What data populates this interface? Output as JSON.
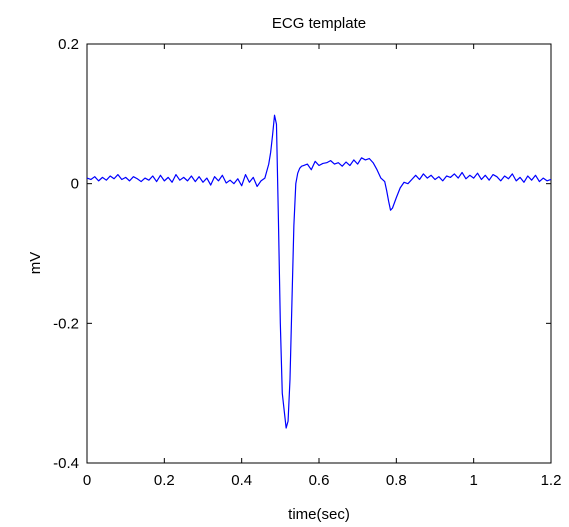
{
  "chart_data": {
    "type": "line",
    "title": "ECG template",
    "xlabel": "time(sec)",
    "ylabel": "mV",
    "xlim": [
      0,
      1.2
    ],
    "ylim": [
      -0.4,
      0.2
    ],
    "xticks": [
      0,
      0.2,
      0.4,
      0.6,
      0.8,
      1,
      1.2
    ],
    "xtick_labels": [
      "0",
      "0.2",
      "0.4",
      "0.6",
      "0.8",
      "1",
      "1.2"
    ],
    "yticks": [
      -0.4,
      -0.2,
      0,
      0.2
    ],
    "ytick_labels": [
      "-0.4",
      "-0.2",
      "0",
      "0.2"
    ],
    "grid": false,
    "line_color": "#0000ff",
    "series": [
      {
        "x": [
          0,
          0.01,
          0.02,
          0.03,
          0.04,
          0.05,
          0.06,
          0.07,
          0.08,
          0.09,
          0.1,
          0.11,
          0.12,
          0.13,
          0.14,
          0.15,
          0.16,
          0.17,
          0.18,
          0.19,
          0.2,
          0.21,
          0.22,
          0.23,
          0.24,
          0.25,
          0.26,
          0.27,
          0.28,
          0.29,
          0.3,
          0.31,
          0.32,
          0.33,
          0.34,
          0.35,
          0.36,
          0.37,
          0.38,
          0.39,
          0.4,
          0.41,
          0.42,
          0.43,
          0.44,
          0.45,
          0.46,
          0.47,
          0.475,
          0.48,
          0.485,
          0.49,
          0.495,
          0.5,
          0.505,
          0.51,
          0.515,
          0.52,
          0.525,
          0.53,
          0.535,
          0.54,
          0.545,
          0.55,
          0.555,
          0.56,
          0.57,
          0.58,
          0.59,
          0.6,
          0.61,
          0.62,
          0.63,
          0.64,
          0.65,
          0.66,
          0.67,
          0.68,
          0.69,
          0.7,
          0.71,
          0.72,
          0.73,
          0.74,
          0.75,
          0.76,
          0.77,
          0.775,
          0.78,
          0.785,
          0.79,
          0.8,
          0.81,
          0.82,
          0.83,
          0.84,
          0.85,
          0.86,
          0.87,
          0.88,
          0.89,
          0.9,
          0.91,
          0.92,
          0.93,
          0.94,
          0.95,
          0.96,
          0.97,
          0.98,
          0.99,
          1.0,
          1.01,
          1.02,
          1.03,
          1.04,
          1.05,
          1.06,
          1.07,
          1.08,
          1.09,
          1.1,
          1.11,
          1.12,
          1.13,
          1.14,
          1.15,
          1.16,
          1.17,
          1.18,
          1.19,
          1.2
        ],
        "y": [
          0.008,
          0.006,
          0.01,
          0.004,
          0.009,
          0.005,
          0.011,
          0.007,
          0.013,
          0.006,
          0.009,
          0.004,
          0.01,
          0.007,
          0.003,
          0.008,
          0.005,
          0.011,
          0.003,
          0.012,
          0.004,
          0.009,
          0.002,
          0.013,
          0.005,
          0.009,
          0.004,
          0.011,
          0.003,
          0.01,
          0.002,
          0.008,
          -0.002,
          0.01,
          0.004,
          0.012,
          0.001,
          0.005,
          0.0,
          0.007,
          -0.003,
          0.013,
          0.002,
          0.009,
          -0.004,
          0.004,
          0.008,
          0.028,
          0.045,
          0.07,
          0.098,
          0.085,
          -0.05,
          -0.2,
          -0.3,
          -0.325,
          -0.35,
          -0.34,
          -0.28,
          -0.17,
          -0.06,
          0.0,
          0.015,
          0.022,
          0.025,
          0.026,
          0.028,
          0.02,
          0.032,
          0.026,
          0.029,
          0.03,
          0.033,
          0.028,
          0.03,
          0.025,
          0.031,
          0.026,
          0.034,
          0.028,
          0.037,
          0.034,
          0.036,
          0.03,
          0.02,
          0.008,
          0.003,
          -0.01,
          -0.025,
          -0.038,
          -0.035,
          -0.02,
          -0.006,
          0.002,
          0.0,
          0.006,
          0.012,
          0.006,
          0.014,
          0.008,
          0.012,
          0.006,
          0.01,
          0.004,
          0.011,
          0.009,
          0.014,
          0.008,
          0.016,
          0.007,
          0.012,
          0.008,
          0.015,
          0.006,
          0.012,
          0.005,
          0.013,
          0.01,
          0.004,
          0.011,
          0.007,
          0.014,
          0.004,
          0.009,
          0.002,
          0.011,
          0.005,
          0.012,
          0.003,
          0.008,
          0.004,
          0.006
        ]
      }
    ]
  }
}
